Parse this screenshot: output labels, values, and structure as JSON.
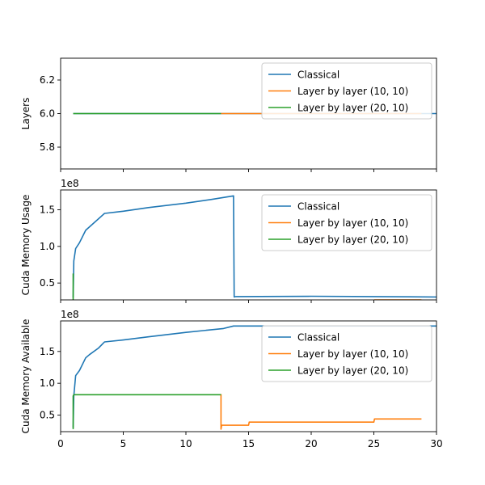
{
  "chart_data": [
    {
      "type": "line",
      "ylabel": "Layers",
      "ylim": [
        5.67,
        6.33
      ],
      "yticks": [
        5.8,
        6.0,
        6.2
      ],
      "ytick_labels": [
        "5.8",
        "6.0",
        "6.2"
      ],
      "xlim": [
        0,
        30
      ],
      "exponent_label": "",
      "legend_position": "top-right",
      "series": [
        {
          "name": "Classical",
          "color": "#1f77b4",
          "x": [
            1,
            30
          ],
          "y": [
            6.0,
            6.0
          ]
        },
        {
          "name": "Layer by layer (10, 10)",
          "color": "#ff7f0e",
          "x": [
            12.8,
            28.8
          ],
          "y": [
            6.0,
            6.0
          ]
        },
        {
          "name": "Layer by layer (20, 10)",
          "color": "#2ca02c",
          "x": [
            1,
            12.8
          ],
          "y": [
            6.0,
            6.0
          ]
        }
      ]
    },
    {
      "type": "line",
      "ylabel": "Cuda Memory Usage",
      "ylim": [
        0.27,
        1.77
      ],
      "yticks": [
        0.5,
        1.0,
        1.5
      ],
      "ytick_labels": [
        "0.5",
        "1.0",
        "1.5"
      ],
      "xlim": [
        0,
        30
      ],
      "exponent_label": "1e8",
      "legend_position": "top-right",
      "series": [
        {
          "name": "Classical",
          "color": "#1f77b4",
          "x": [
            1.0,
            1.05,
            1.2,
            1.5,
            2.0,
            3.5,
            5,
            7,
            10,
            12,
            13.8,
            13.85,
            14,
            20,
            25,
            30
          ],
          "y": [
            0.3,
            0.8,
            0.97,
            1.05,
            1.22,
            1.45,
            1.48,
            1.53,
            1.59,
            1.64,
            1.69,
            0.31,
            0.315,
            0.32,
            0.315,
            0.31
          ]
        },
        {
          "name": "Layer by layer (10, 10)",
          "color": "#ff7f0e",
          "x": [
            12.8,
            12.85,
            15,
            15.05,
            20,
            25,
            25.05,
            28.8
          ],
          "y": [
            0.2,
            0.21,
            0.21,
            0.24,
            0.245,
            0.25,
            0.27,
            0.27
          ]
        },
        {
          "name": "Layer by layer (20, 10)",
          "color": "#2ca02c",
          "x": [
            1.0,
            1.0,
            1.05,
            1.1,
            5,
            10,
            12.8
          ],
          "y": [
            0.63,
            0.2,
            0.22,
            0.22,
            0.22,
            0.225,
            0.23
          ]
        }
      ]
    },
    {
      "type": "line",
      "ylabel": "Cuda Memory Available",
      "ylim": [
        0.24,
        1.98
      ],
      "yticks": [
        0.5,
        1.0,
        1.5
      ],
      "ytick_labels": [
        "0.5",
        "1.0",
        "1.5"
      ],
      "xlim": [
        0,
        30
      ],
      "exponent_label": "1e8",
      "legend_position": "top-right",
      "series": [
        {
          "name": "Classical",
          "color": "#1f77b4",
          "x": [
            1.0,
            1.05,
            1.2,
            1.5,
            2.0,
            2.3,
            3.0,
            3.5,
            5,
            7,
            10,
            13,
            13.8,
            20,
            25,
            30
          ],
          "y": [
            0.3,
            0.8,
            1.12,
            1.2,
            1.4,
            1.45,
            1.55,
            1.65,
            1.68,
            1.73,
            1.8,
            1.86,
            1.9,
            1.9,
            1.9,
            1.9
          ]
        },
        {
          "name": "Layer by layer (10, 10)",
          "color": "#ff7f0e",
          "x": [
            12.8,
            12.8,
            12.85,
            15,
            15.05,
            25,
            25.05,
            28.8
          ],
          "y": [
            0.83,
            0.28,
            0.34,
            0.34,
            0.39,
            0.39,
            0.44,
            0.44
          ]
        },
        {
          "name": "Layer by layer (20, 10)",
          "color": "#2ca02c",
          "x": [
            1.0,
            1.0,
            1.05,
            1.1,
            5,
            10,
            12.8
          ],
          "y": [
            0.28,
            0.8,
            0.82,
            0.82,
            0.82,
            0.82,
            0.82
          ]
        }
      ]
    }
  ],
  "x_axis": {
    "ticks": [
      0,
      5,
      10,
      15,
      20,
      25,
      30
    ],
    "tick_labels": [
      "0",
      "5",
      "10",
      "15",
      "20",
      "25",
      "30"
    ]
  }
}
